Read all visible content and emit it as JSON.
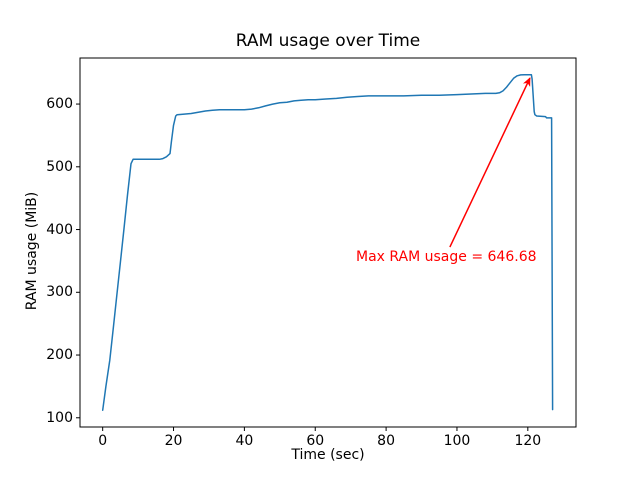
{
  "chart_data": {
    "type": "line",
    "title": "RAM usage over Time",
    "xlabel": "Time (sec)",
    "ylabel": "RAM usage (MiB)",
    "xlim": [
      -6.4,
      133.6
    ],
    "ylim": [
      85.3,
      673.4
    ],
    "xticks": [
      0,
      20,
      40,
      60,
      80,
      100,
      120
    ],
    "yticks": [
      100,
      200,
      300,
      400,
      500,
      600
    ],
    "grid": false,
    "legend": "none",
    "colors": {
      "line": "#1f77b4",
      "annotation": "#ff0000",
      "axis": "#000000",
      "background": "#ffffff"
    },
    "max_ram_mib": 646.68,
    "series": [
      {
        "name": "RAM usage",
        "points": [
          [
            0,
            112
          ],
          [
            0.9,
            150
          ],
          [
            2,
            192
          ],
          [
            3,
            243
          ],
          [
            4,
            295
          ],
          [
            5,
            348
          ],
          [
            6,
            400
          ],
          [
            7,
            455
          ],
          [
            8,
            505
          ],
          [
            8.6,
            512
          ],
          [
            16,
            512
          ],
          [
            17,
            513
          ],
          [
            18,
            516
          ],
          [
            19,
            521
          ],
          [
            19.4,
            540
          ],
          [
            20,
            566
          ],
          [
            20.6,
            581
          ],
          [
            21,
            583
          ],
          [
            23,
            584
          ],
          [
            25,
            585
          ],
          [
            27,
            587
          ],
          [
            29,
            589
          ],
          [
            31,
            590
          ],
          [
            33,
            591
          ],
          [
            40,
            591
          ],
          [
            42,
            592
          ],
          [
            44,
            594
          ],
          [
            46,
            597
          ],
          [
            48,
            600
          ],
          [
            50,
            602
          ],
          [
            52,
            603
          ],
          [
            54,
            605
          ],
          [
            56,
            606
          ],
          [
            58,
            607
          ],
          [
            60,
            607
          ],
          [
            63,
            608
          ],
          [
            66,
            609
          ],
          [
            69,
            611
          ],
          [
            72,
            612
          ],
          [
            75,
            613
          ],
          [
            80,
            613
          ],
          [
            85,
            613
          ],
          [
            90,
            614
          ],
          [
            95,
            614
          ],
          [
            100,
            615
          ],
          [
            104,
            616
          ],
          [
            108,
            617
          ],
          [
            111,
            617
          ],
          [
            112,
            618
          ],
          [
            113,
            621
          ],
          [
            114,
            627
          ],
          [
            115,
            634
          ],
          [
            116,
            641
          ],
          [
            117,
            645
          ],
          [
            118,
            646.5
          ],
          [
            119,
            646.68
          ],
          [
            121,
            646.68
          ],
          [
            121.2,
            640
          ],
          [
            121.5,
            615
          ],
          [
            121.8,
            588
          ],
          [
            122,
            583
          ],
          [
            122.5,
            581
          ],
          [
            125,
            580
          ],
          [
            125.3,
            578
          ],
          [
            126.7,
            578
          ],
          [
            127,
            113
          ]
        ]
      }
    ],
    "annotation": {
      "text": "Max RAM usage = 646.68",
      "color": "#ff0000",
      "text_xy": [
        71.5,
        369
      ],
      "arrow_from": [
        98,
        372
      ],
      "arrow_to": [
        120.6,
        641.5
      ]
    }
  }
}
